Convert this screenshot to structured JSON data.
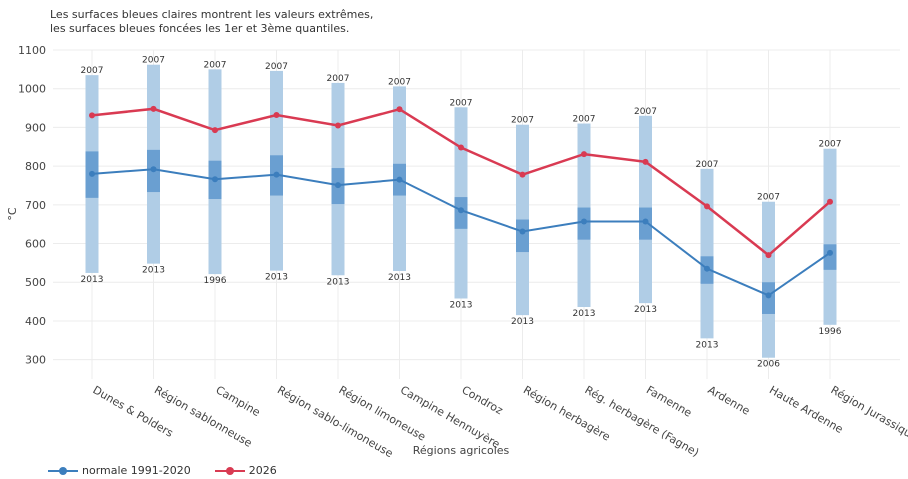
{
  "note": {
    "line1": "Les surfaces bleues claires montrent les valeurs extrêmes,",
    "line2": "les surfaces bleues foncées les 1er et 3ème quantiles."
  },
  "colors": {
    "normale": "#3c7ebd",
    "current": "#d93a52",
    "extreme_band": "#b0cde6",
    "quartile_band": "#6a9fd1",
    "grid": "#ececec"
  },
  "chart_data": {
    "type": "line",
    "xlabel": "Régions agricoles",
    "ylabel": "°C",
    "ylim": [
      250,
      1100
    ],
    "yticks": [
      300,
      400,
      500,
      600,
      700,
      800,
      900,
      1000,
      1100
    ],
    "grid": true,
    "legend_position": "bottom-left",
    "categories": [
      "Dunes & Polders",
      "Région sablonneuse",
      "Campine",
      "Région sablo-limoneuse",
      "Région limoneuse",
      "Campine Hennuyère",
      "Condroz",
      "Région herbagère",
      "Rég. herbagère (Fagne)",
      "Famenne",
      "Ardenne",
      "Haute Ardenne",
      "Région Jurassique"
    ],
    "series": [
      {
        "name": "normale 1991-2020",
        "values": [
          780,
          792,
          766,
          778,
          751,
          765,
          686,
          631,
          657,
          657,
          535,
          466,
          576
        ]
      },
      {
        "name": "2026",
        "values": [
          931,
          948,
          893,
          932,
          905,
          947,
          848,
          778,
          831,
          811,
          696,
          570,
          708
        ]
      }
    ],
    "extremes": {
      "max": [
        1035,
        1062,
        1050,
        1046,
        1015,
        1006,
        952,
        907,
        910,
        930,
        793,
        708,
        845
      ],
      "min": [
        524,
        548,
        521,
        530,
        518,
        529,
        458,
        415,
        436,
        446,
        355,
        305,
        390
      ],
      "max_year": [
        "2007",
        "2007",
        "2007",
        "2007",
        "2007",
        "2007",
        "2007",
        "2007",
        "2007",
        "2007",
        "2007",
        "2007",
        "2007"
      ],
      "min_year": [
        "2013",
        "2013",
        "1996",
        "2013",
        "2013",
        "2013",
        "2013",
        "2013",
        "2013",
        "2013",
        "2013",
        "2006",
        "1996"
      ]
    },
    "quartiles": {
      "q1": [
        718,
        733,
        715,
        724,
        702,
        724,
        638,
        578,
        610,
        610,
        496,
        418,
        532
      ],
      "q3": [
        838,
        842,
        814,
        828,
        795,
        806,
        720,
        662,
        693,
        693,
        567,
        500,
        598
      ]
    }
  }
}
